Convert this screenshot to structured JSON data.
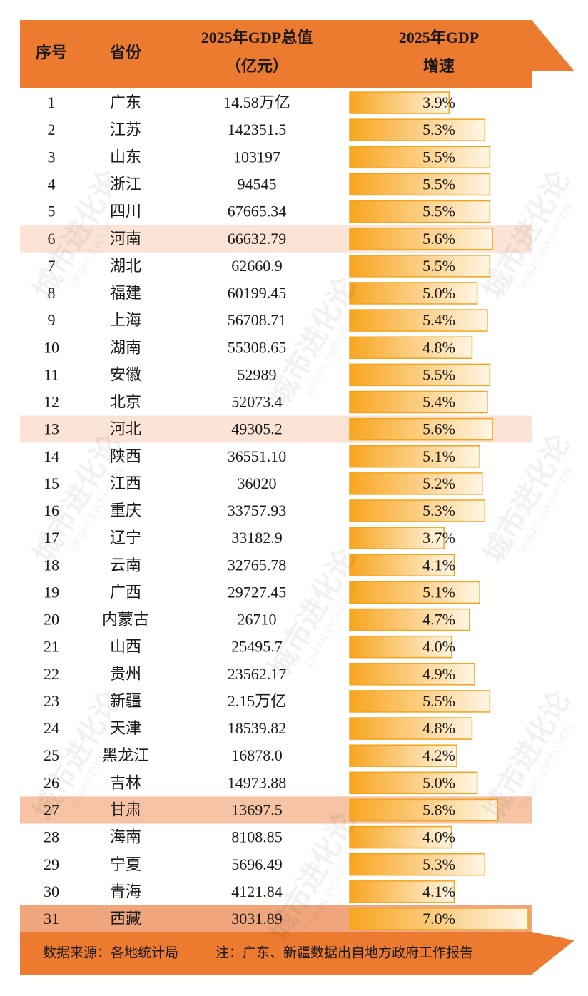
{
  "table": {
    "columns": [
      [
        "序号"
      ],
      [
        "省份"
      ],
      [
        "2025年GDP总值",
        "（亿元）"
      ],
      [
        "2025年GDP",
        "增速"
      ]
    ],
    "rows": [
      [
        "1",
        "广东",
        "14.58万亿"
      ],
      [
        "2",
        "江苏",
        "142351.5"
      ],
      [
        "3",
        "山东",
        "103197"
      ],
      [
        "4",
        "浙江",
        "94545"
      ],
      [
        "5",
        "四川",
        "67665.34"
      ],
      [
        "6",
        "河南",
        "66632.79"
      ],
      [
        "7",
        "湖北",
        "62660.9"
      ],
      [
        "8",
        "福建",
        "60199.45"
      ],
      [
        "9",
        "上海",
        "56708.71"
      ],
      [
        "10",
        "湖南",
        "55308.65"
      ],
      [
        "11",
        "安徽",
        "52989"
      ],
      [
        "12",
        "北京",
        "52073.4"
      ],
      [
        "13",
        "河北",
        "49305.2"
      ],
      [
        "14",
        "陕西",
        "36551.10"
      ],
      [
        "15",
        "江西",
        "36020"
      ],
      [
        "16",
        "重庆",
        "33757.93"
      ],
      [
        "17",
        "辽宁",
        "33182.9"
      ],
      [
        "18",
        "云南",
        "32765.78"
      ],
      [
        "19",
        "广西",
        "29727.45"
      ],
      [
        "20",
        "内蒙古",
        "26710"
      ],
      [
        "21",
        "山西",
        "25495.7"
      ],
      [
        "22",
        "贵州",
        "23562.17"
      ],
      [
        "23",
        "新疆",
        "2.15万亿"
      ],
      [
        "24",
        "天津",
        "18539.82"
      ],
      [
        "25",
        "黑龙江",
        "16878.0"
      ],
      [
        "26",
        "吉林",
        "14973.88"
      ],
      [
        "27",
        "甘肃",
        "13697.5"
      ],
      [
        "28",
        "海南",
        "8108.85"
      ],
      [
        "29",
        "宁夏",
        "5696.49"
      ],
      [
        "30",
        "青海",
        "4121.84"
      ],
      [
        "31",
        "西藏",
        "3031.89"
      ]
    ],
    "growth": {
      "values": [
        3.9,
        5.3,
        5.5,
        5.5,
        5.5,
        5.6,
        5.5,
        5.0,
        5.4,
        4.8,
        5.5,
        5.4,
        5.6,
        5.1,
        5.2,
        5.3,
        3.7,
        4.1,
        5.1,
        4.7,
        4.0,
        4.9,
        5.5,
        4.8,
        4.2,
        5.0,
        5.8,
        4.0,
        5.3,
        4.1,
        7.0
      ],
      "value_labels": [
        "3.9%",
        "5.3%",
        "5.5%",
        "5.5%",
        "5.5%",
        "5.6%",
        "5.5%",
        "5.0%",
        "5.4%",
        "4.8%",
        "5.5%",
        "5.4%",
        "5.6%",
        "5.1%",
        "5.2%",
        "5.3%",
        "3.7%",
        "4.1%",
        "5.1%",
        "4.7%",
        "4.0%",
        "4.9%",
        "5.5%",
        "4.8%",
        "4.2%",
        "5.0%",
        "5.8%",
        "4.0%",
        "5.3%",
        "4.1%",
        "7.0%"
      ]
    }
  },
  "footer": {
    "source": "数据来源：各地统计局",
    "note": "注：广东、新疆数据出自地方政府工作报告"
  },
  "watermark": {
    "title": "城市进化论",
    "subtitle": "URBAN EVOLUTION"
  }
}
